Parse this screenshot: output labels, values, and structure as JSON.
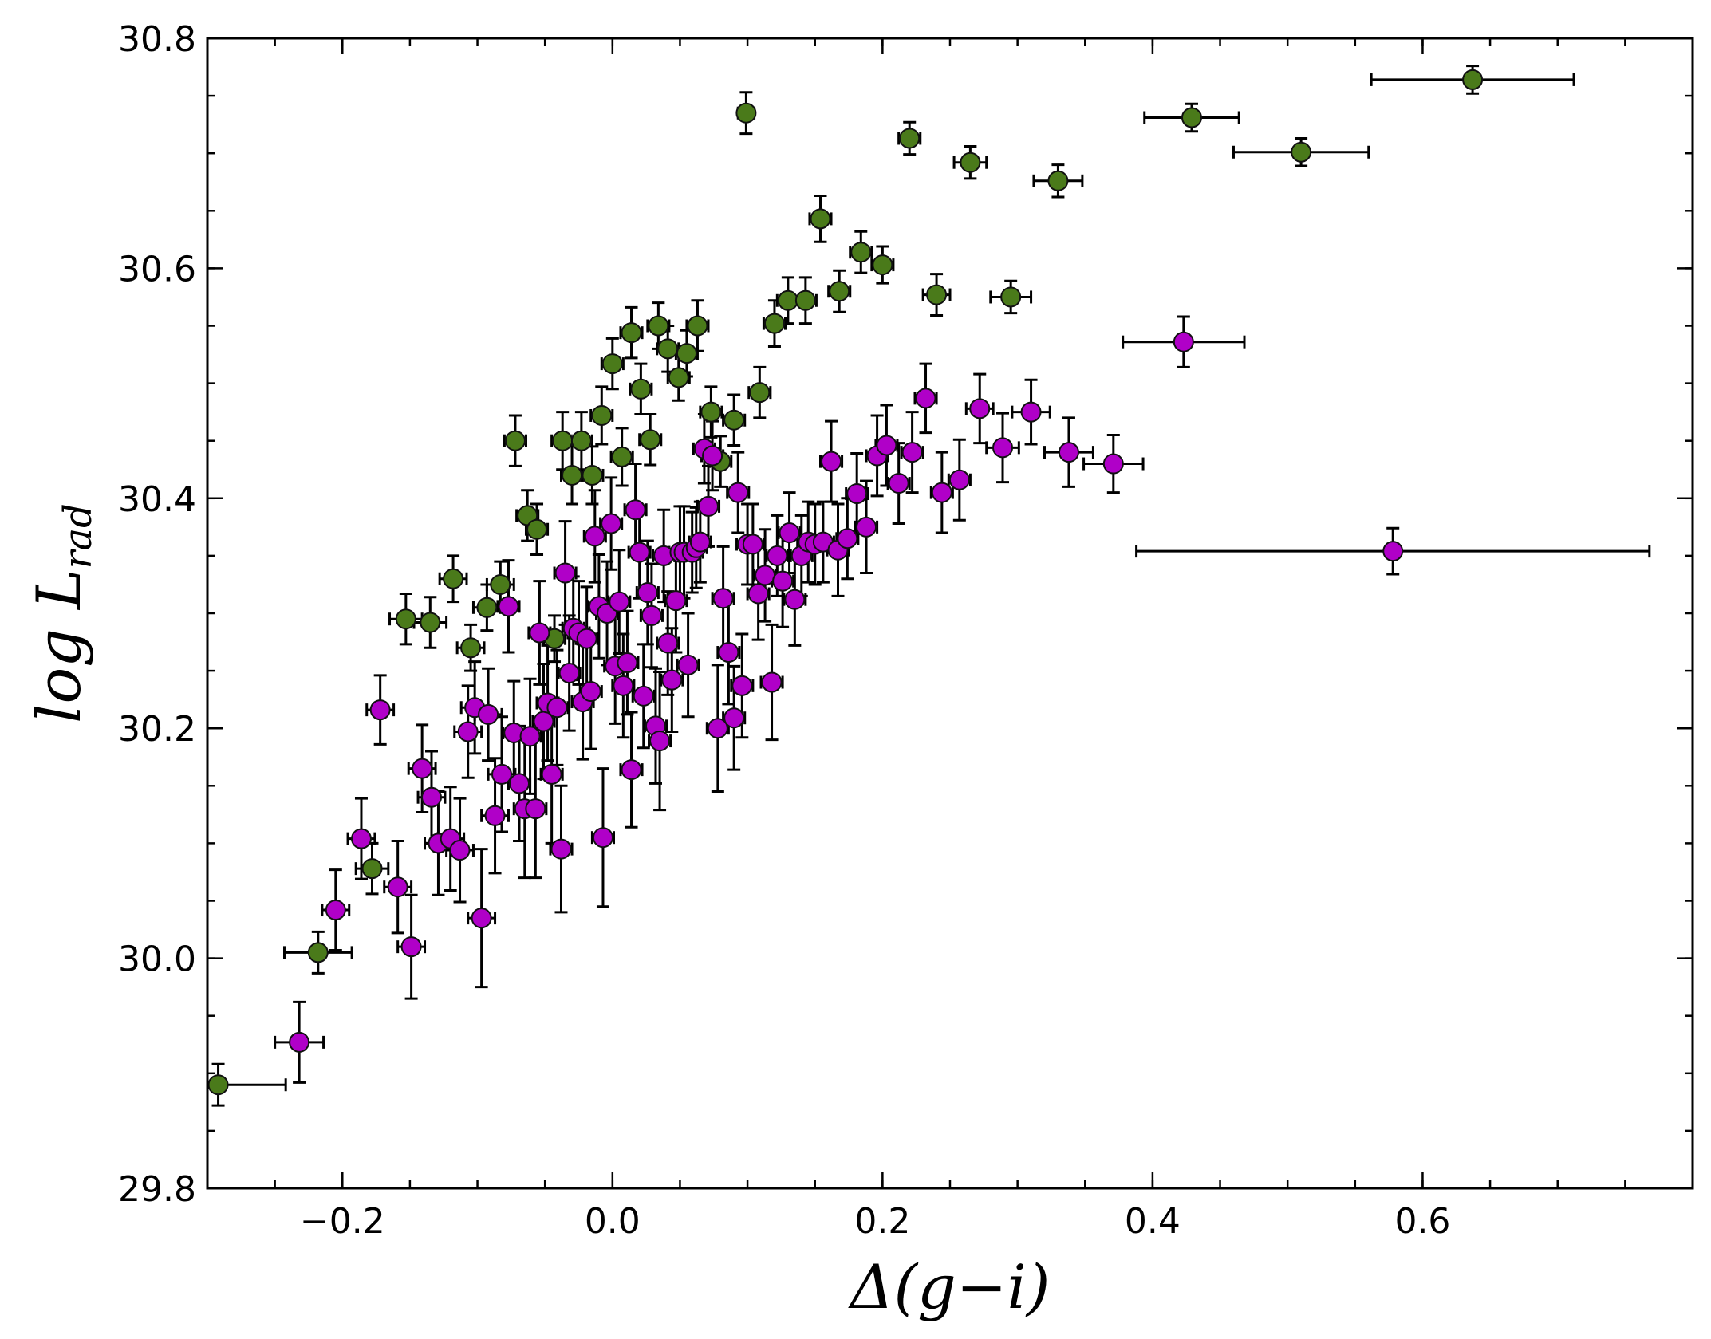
{
  "chart_data": {
    "type": "scatter",
    "title": "",
    "xlabel": "Δ(g−i)",
    "ylabel_main": "log L",
    "ylabel_sub": "rad",
    "xlim": [
      -0.3,
      0.8
    ],
    "ylim": [
      29.8,
      30.8
    ],
    "xticks": [
      -0.2,
      0.0,
      0.2,
      0.4,
      0.6
    ],
    "xtick_labels": [
      "−0.2",
      "0.0",
      "0.2",
      "0.4",
      "0.6"
    ],
    "yticks": [
      29.8,
      30.0,
      30.2,
      30.4,
      30.6,
      30.8
    ],
    "ytick_labels": [
      "29.8",
      "30.0",
      "30.2",
      "30.4",
      "30.6",
      "30.8"
    ],
    "series": [
      {
        "name": "green",
        "color": "#4a7a1a",
        "points": [
          [
            -0.292,
            29.89,
            0.05,
            0.018
          ],
          [
            -0.218,
            30.005,
            0.025,
            0.018
          ],
          [
            -0.178,
            30.078,
            0.012,
            0.022
          ],
          [
            -0.153,
            30.295,
            0.012,
            0.022
          ],
          [
            -0.135,
            30.292,
            0.012,
            0.022
          ],
          [
            -0.118,
            30.33,
            0.01,
            0.02
          ],
          [
            -0.105,
            30.27,
            0.01,
            0.02
          ],
          [
            -0.093,
            30.305,
            0.01,
            0.02
          ],
          [
            -0.083,
            30.325,
            0.01,
            0.02
          ],
          [
            -0.072,
            30.45,
            0.008,
            0.022
          ],
          [
            -0.063,
            30.385,
            0.008,
            0.022
          ],
          [
            -0.056,
            30.373,
            0.008,
            0.022
          ],
          [
            -0.043,
            30.278,
            0.008,
            0.02
          ],
          [
            -0.037,
            30.45,
            0.008,
            0.025
          ],
          [
            -0.03,
            30.42,
            0.008,
            0.025
          ],
          [
            -0.023,
            30.45,
            0.008,
            0.025
          ],
          [
            -0.015,
            30.42,
            0.008,
            0.025
          ],
          [
            -0.008,
            30.472,
            0.008,
            0.025
          ],
          [
            0.0,
            30.517,
            0.008,
            0.022
          ],
          [
            0.007,
            30.436,
            0.008,
            0.025
          ],
          [
            0.014,
            30.544,
            0.008,
            0.022
          ],
          [
            0.021,
            30.495,
            0.008,
            0.022
          ],
          [
            0.028,
            30.451,
            0.008,
            0.022
          ],
          [
            0.034,
            30.55,
            0.008,
            0.02
          ],
          [
            0.041,
            30.53,
            0.008,
            0.02
          ],
          [
            0.049,
            30.505,
            0.008,
            0.02
          ],
          [
            0.055,
            30.526,
            0.008,
            0.02
          ],
          [
            0.063,
            30.55,
            0.008,
            0.022
          ],
          [
            0.073,
            30.475,
            0.008,
            0.022
          ],
          [
            0.08,
            30.432,
            0.008,
            0.022
          ],
          [
            0.09,
            30.468,
            0.008,
            0.022
          ],
          [
            0.099,
            30.735,
            0.006,
            0.018
          ],
          [
            0.109,
            30.492,
            0.008,
            0.022
          ],
          [
            0.12,
            30.552,
            0.008,
            0.02
          ],
          [
            0.13,
            30.572,
            0.008,
            0.02
          ],
          [
            0.143,
            30.572,
            0.008,
            0.02
          ],
          [
            0.154,
            30.643,
            0.008,
            0.02
          ],
          [
            0.168,
            30.58,
            0.008,
            0.018
          ],
          [
            0.184,
            30.614,
            0.008,
            0.018
          ],
          [
            0.2,
            30.603,
            0.008,
            0.016
          ],
          [
            0.22,
            30.713,
            0.008,
            0.014
          ],
          [
            0.24,
            30.577,
            0.01,
            0.018
          ],
          [
            0.265,
            30.692,
            0.012,
            0.014
          ],
          [
            0.295,
            30.575,
            0.015,
            0.014
          ],
          [
            0.33,
            30.676,
            0.018,
            0.014
          ],
          [
            0.429,
            30.731,
            0.035,
            0.012
          ],
          [
            0.51,
            30.701,
            0.05,
            0.012
          ],
          [
            0.637,
            30.764,
            0.075,
            0.012
          ]
        ]
      },
      {
        "name": "magenta",
        "color": "#b000c8",
        "points": [
          [
            -0.232,
            29.927,
            0.018,
            0.035
          ],
          [
            -0.205,
            30.042,
            0.01,
            0.035
          ],
          [
            -0.186,
            30.104,
            0.01,
            0.035
          ],
          [
            -0.172,
            30.216,
            0.01,
            0.03
          ],
          [
            -0.159,
            30.062,
            0.01,
            0.04
          ],
          [
            -0.149,
            30.01,
            0.01,
            0.045
          ],
          [
            -0.141,
            30.165,
            0.01,
            0.038
          ],
          [
            -0.134,
            30.14,
            0.01,
            0.04
          ],
          [
            -0.129,
            30.1,
            0.01,
            0.045
          ],
          [
            -0.12,
            30.104,
            0.01,
            0.045
          ],
          [
            -0.113,
            30.094,
            0.01,
            0.045
          ],
          [
            -0.107,
            30.197,
            0.01,
            0.04
          ],
          [
            -0.102,
            30.218,
            0.01,
            0.04
          ],
          [
            -0.097,
            30.035,
            0.01,
            0.06
          ],
          [
            -0.092,
            30.212,
            0.01,
            0.04
          ],
          [
            -0.087,
            30.124,
            0.01,
            0.05
          ],
          [
            -0.082,
            30.16,
            0.01,
            0.05
          ],
          [
            -0.077,
            30.306,
            0.008,
            0.04
          ],
          [
            -0.073,
            30.196,
            0.008,
            0.045
          ],
          [
            -0.069,
            30.152,
            0.008,
            0.05
          ],
          [
            -0.065,
            30.13,
            0.008,
            0.06
          ],
          [
            -0.061,
            30.193,
            0.008,
            0.05
          ],
          [
            -0.057,
            30.13,
            0.008,
            0.06
          ],
          [
            -0.054,
            30.283,
            0.008,
            0.045
          ],
          [
            -0.051,
            30.206,
            0.008,
            0.05
          ],
          [
            -0.048,
            30.222,
            0.008,
            0.05
          ],
          [
            -0.045,
            30.16,
            0.008,
            0.06
          ],
          [
            -0.041,
            30.218,
            0.008,
            0.05
          ],
          [
            -0.038,
            30.095,
            0.008,
            0.055
          ],
          [
            -0.035,
            30.335,
            0.008,
            0.045
          ],
          [
            -0.032,
            30.248,
            0.008,
            0.05
          ],
          [
            -0.029,
            30.287,
            0.008,
            0.045
          ],
          [
            -0.025,
            30.283,
            0.008,
            0.045
          ],
          [
            -0.022,
            30.223,
            0.008,
            0.05
          ],
          [
            -0.019,
            30.278,
            0.008,
            0.045
          ],
          [
            -0.016,
            30.232,
            0.008,
            0.05
          ],
          [
            -0.013,
            30.367,
            0.008,
            0.04
          ],
          [
            -0.01,
            30.306,
            0.008,
            0.045
          ],
          [
            -0.007,
            30.105,
            0.008,
            0.06
          ],
          [
            -0.004,
            30.3,
            0.008,
            0.045
          ],
          [
            -0.001,
            30.378,
            0.008,
            0.04
          ],
          [
            0.002,
            30.254,
            0.008,
            0.05
          ],
          [
            0.005,
            30.31,
            0.008,
            0.045
          ],
          [
            0.008,
            30.237,
            0.008,
            0.045
          ],
          [
            0.011,
            30.257,
            0.008,
            0.045
          ],
          [
            0.014,
            30.164,
            0.008,
            0.05
          ],
          [
            0.017,
            30.39,
            0.008,
            0.04
          ],
          [
            0.02,
            30.353,
            0.008,
            0.04
          ],
          [
            0.023,
            30.228,
            0.008,
            0.045
          ],
          [
            0.026,
            30.318,
            0.008,
            0.045
          ],
          [
            0.029,
            30.298,
            0.008,
            0.045
          ],
          [
            0.032,
            30.202,
            0.008,
            0.05
          ],
          [
            0.035,
            30.189,
            0.008,
            0.06
          ],
          [
            0.038,
            30.35,
            0.008,
            0.04
          ],
          [
            0.041,
            30.274,
            0.008,
            0.045
          ],
          [
            0.044,
            30.242,
            0.008,
            0.045
          ],
          [
            0.047,
            30.311,
            0.008,
            0.045
          ],
          [
            0.05,
            30.353,
            0.008,
            0.04
          ],
          [
            0.053,
            30.353,
            0.008,
            0.04
          ],
          [
            0.056,
            30.255,
            0.008,
            0.045
          ],
          [
            0.059,
            30.353,
            0.008,
            0.035
          ],
          [
            0.062,
            30.357,
            0.008,
            0.035
          ],
          [
            0.065,
            30.362,
            0.008,
            0.035
          ],
          [
            0.068,
            30.443,
            0.008,
            0.03
          ],
          [
            0.071,
            30.393,
            0.008,
            0.035
          ],
          [
            0.074,
            30.437,
            0.008,
            0.03
          ],
          [
            0.078,
            30.2,
            0.008,
            0.055
          ],
          [
            0.082,
            30.313,
            0.008,
            0.045
          ],
          [
            0.086,
            30.266,
            0.008,
            0.045
          ],
          [
            0.09,
            30.209,
            0.008,
            0.045
          ],
          [
            0.093,
            30.405,
            0.008,
            0.035
          ],
          [
            0.096,
            30.237,
            0.008,
            0.045
          ],
          [
            0.1,
            30.36,
            0.008,
            0.035
          ],
          [
            0.104,
            30.36,
            0.008,
            0.035
          ],
          [
            0.108,
            30.317,
            0.008,
            0.04
          ],
          [
            0.113,
            30.333,
            0.008,
            0.04
          ],
          [
            0.118,
            30.24,
            0.008,
            0.05
          ],
          [
            0.122,
            30.35,
            0.008,
            0.035
          ],
          [
            0.126,
            30.328,
            0.008,
            0.04
          ],
          [
            0.131,
            30.37,
            0.008,
            0.035
          ],
          [
            0.135,
            30.312,
            0.008,
            0.04
          ],
          [
            0.14,
            30.35,
            0.008,
            0.035
          ],
          [
            0.145,
            30.362,
            0.008,
            0.035
          ],
          [
            0.15,
            30.36,
            0.008,
            0.035
          ],
          [
            0.156,
            30.362,
            0.008,
            0.035
          ],
          [
            0.162,
            30.432,
            0.008,
            0.035
          ],
          [
            0.167,
            30.355,
            0.008,
            0.04
          ],
          [
            0.174,
            30.365,
            0.008,
            0.035
          ],
          [
            0.181,
            30.404,
            0.008,
            0.035
          ],
          [
            0.188,
            30.375,
            0.008,
            0.04
          ],
          [
            0.196,
            30.437,
            0.008,
            0.035
          ],
          [
            0.203,
            30.446,
            0.008,
            0.035
          ],
          [
            0.212,
            30.413,
            0.008,
            0.035
          ],
          [
            0.222,
            30.44,
            0.008,
            0.035
          ],
          [
            0.232,
            30.487,
            0.008,
            0.03
          ],
          [
            0.244,
            30.405,
            0.008,
            0.035
          ],
          [
            0.257,
            30.416,
            0.008,
            0.035
          ],
          [
            0.272,
            30.478,
            0.01,
            0.03
          ],
          [
            0.289,
            30.444,
            0.012,
            0.03
          ],
          [
            0.31,
            30.475,
            0.014,
            0.028
          ],
          [
            0.338,
            30.44,
            0.018,
            0.03
          ],
          [
            0.371,
            30.43,
            0.022,
            0.025
          ],
          [
            0.423,
            30.536,
            0.045,
            0.022
          ],
          [
            0.578,
            30.354,
            0.19,
            0.02
          ]
        ]
      }
    ]
  }
}
